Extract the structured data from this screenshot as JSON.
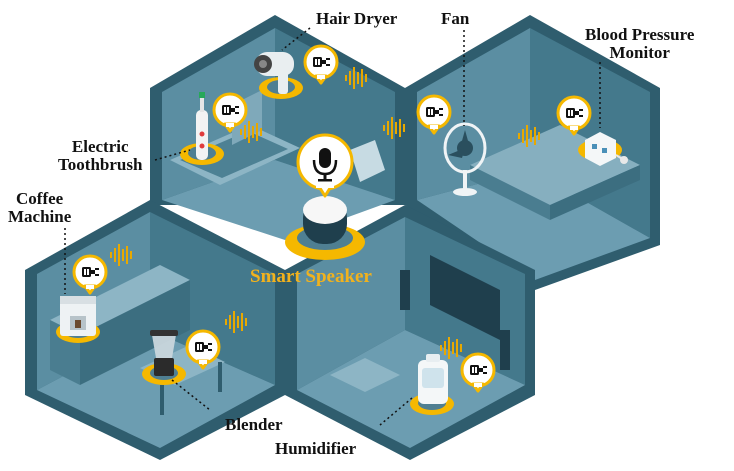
{
  "labels": {
    "hair_dryer": "Hair Dryer",
    "fan": "Fan",
    "bp_line1": "Blood Pressure",
    "bp_line2": "Monitor",
    "toothbrush_line1": "Electric",
    "toothbrush_line2": "Toothbrush",
    "coffee_line1": "Coffee",
    "coffee_line2": "Machine",
    "smart_speaker": "Smart Speaker",
    "blender": "Blender",
    "humidifier": "Humidifier"
  },
  "colors": {
    "room_floor": "#5f8fa3",
    "room_wall_dark": "#2f5d6e",
    "room_wall_mid": "#3f7386",
    "room_wall_light": "#6b9cb0",
    "accent_orange": "#f5b800",
    "speaker_text": "#f1b21d",
    "wave": "#e8a800",
    "text": "#111111"
  },
  "icons": {
    "device_badge": "battery-plug-icon",
    "speaker_badge": "microphone-icon"
  }
}
